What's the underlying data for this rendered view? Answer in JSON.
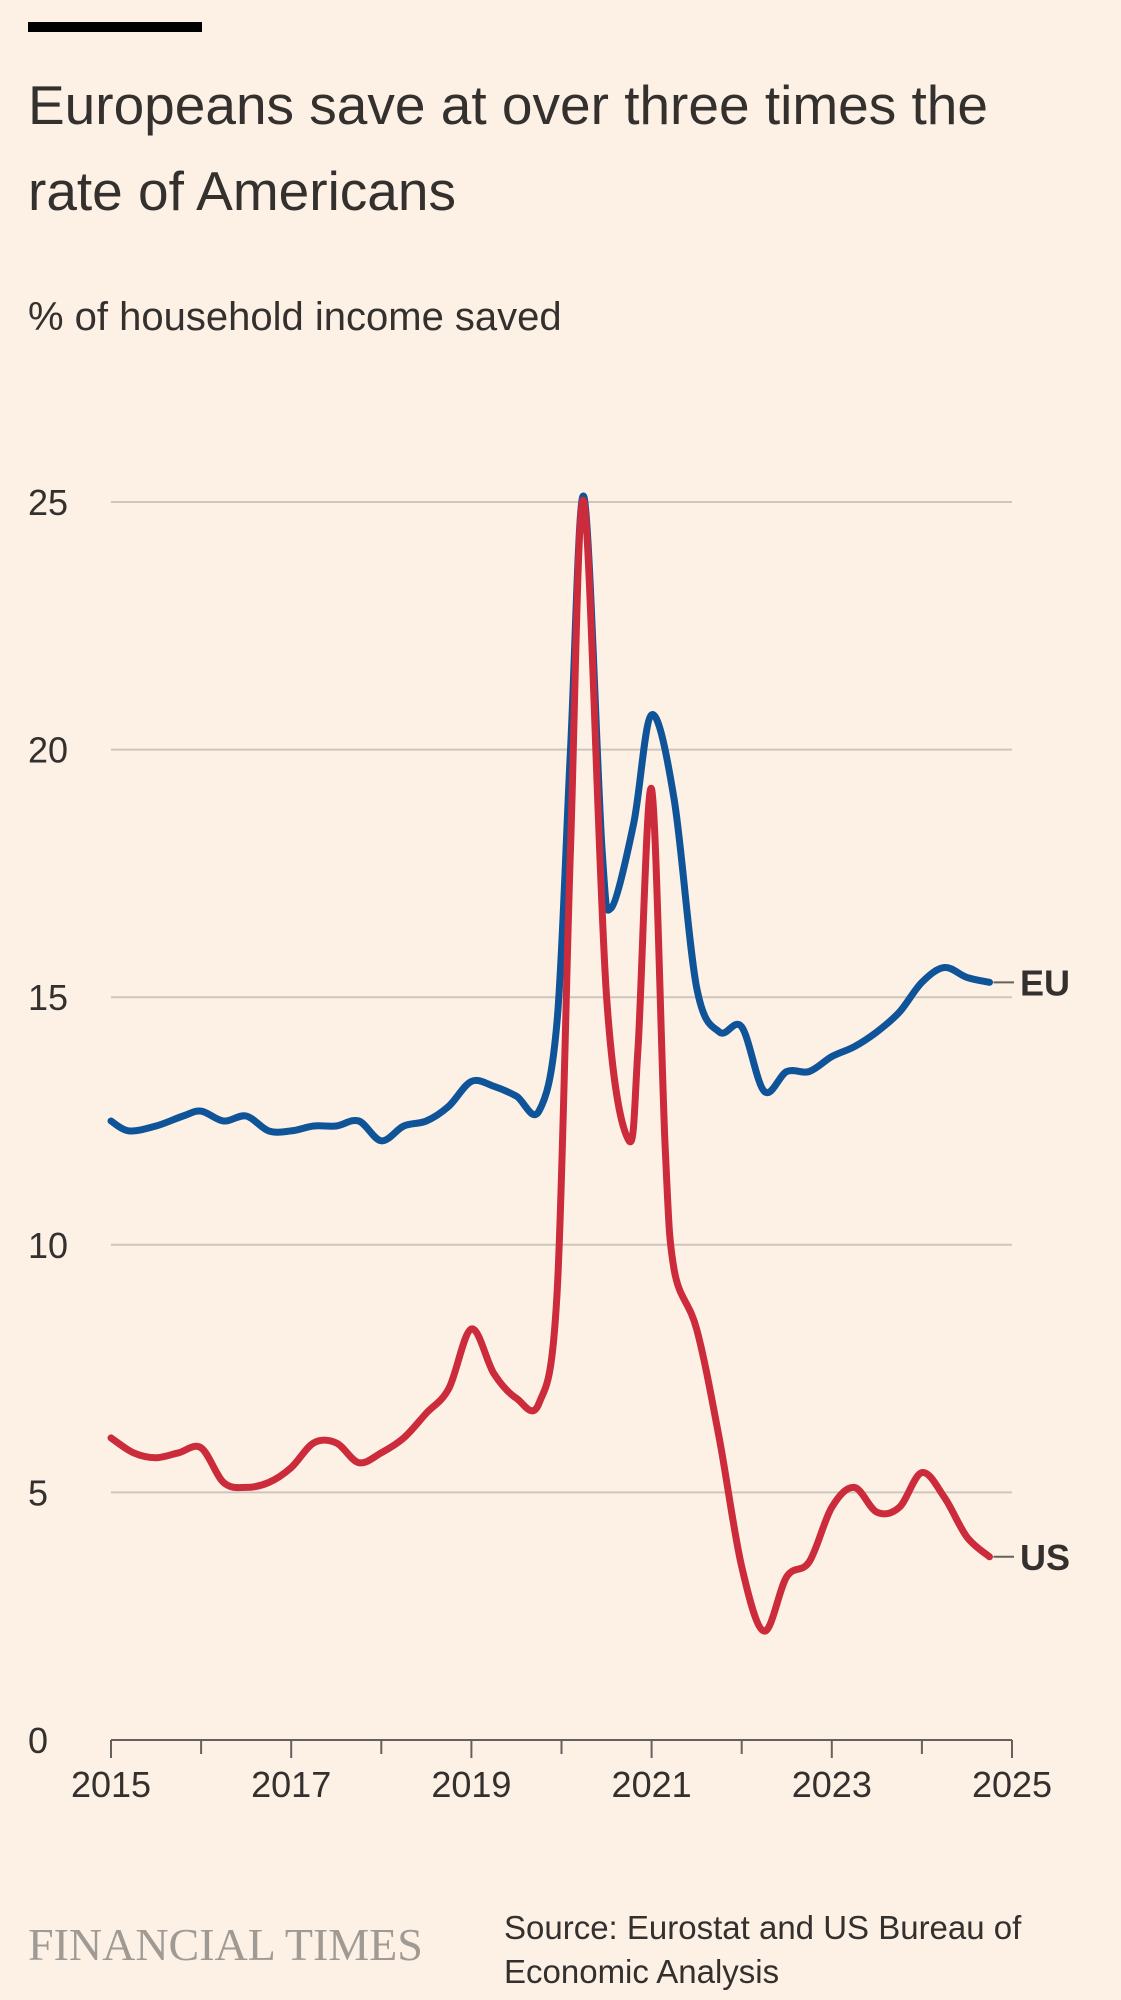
{
  "title": "Europeans save at over three times the rate of Americans",
  "subtitle": "% of household income saved",
  "footer": {
    "logo": "FINANCIAL TIMES",
    "source": "Source: Eurostat and US Bureau of Economic Analysis"
  },
  "colors": {
    "background": "#FDF1E6",
    "eu": "#0F5499",
    "us": "#CC2B3B",
    "grid": "#CEC6BE",
    "axis": "#66605C",
    "text": "#33302E",
    "logo": "#A09A95"
  },
  "chart_data": {
    "type": "line",
    "title": "Europeans save at over three times the rate of Americans",
    "subtitle": "% of household income saved",
    "xlabel": "",
    "ylabel": "% of household income saved",
    "xlim": [
      2015,
      2025
    ],
    "ylim": [
      0,
      25
    ],
    "x_ticks": [
      2015,
      2017,
      2019,
      2021,
      2023,
      2025
    ],
    "x_minor_ticks": [
      2016,
      2018,
      2020,
      2022,
      2024
    ],
    "y_ticks": [
      0,
      5,
      10,
      15,
      20,
      25
    ],
    "grid": true,
    "legend": "inline labels at right end of lines",
    "series": [
      {
        "name": "EU",
        "color": "#0F5499",
        "x": [
          2015.0,
          2015.2,
          2015.5,
          2015.8,
          2016.0,
          2016.25,
          2016.5,
          2016.75,
          2017.0,
          2017.25,
          2017.5,
          2017.75,
          2018.0,
          2018.25,
          2018.5,
          2018.75,
          2019.0,
          2019.25,
          2019.5,
          2019.75,
          2019.95,
          2020.1,
          2020.25,
          2020.45,
          2020.55,
          2020.8,
          2021.0,
          2021.25,
          2021.5,
          2021.75,
          2022.0,
          2022.25,
          2022.5,
          2022.75,
          2023.0,
          2023.25,
          2023.5,
          2023.75,
          2024.0,
          2024.25,
          2024.5,
          2024.75
        ],
        "values": [
          12.5,
          12.3,
          12.4,
          12.6,
          12.7,
          12.5,
          12.6,
          12.3,
          12.3,
          12.4,
          12.4,
          12.5,
          12.1,
          12.4,
          12.5,
          12.8,
          13.3,
          13.2,
          13.0,
          12.7,
          14.5,
          20.0,
          25.1,
          18.0,
          16.8,
          18.5,
          20.7,
          19.0,
          15.2,
          14.3,
          14.4,
          13.1,
          13.5,
          13.5,
          13.8,
          14.0,
          14.3,
          14.7,
          15.3,
          15.6,
          15.4,
          15.3
        ]
      },
      {
        "name": "US",
        "color": "#CC2B3B",
        "x": [
          2015.0,
          2015.25,
          2015.5,
          2015.75,
          2016.0,
          2016.25,
          2016.5,
          2016.75,
          2017.0,
          2017.25,
          2017.5,
          2017.75,
          2018.0,
          2018.25,
          2018.5,
          2018.75,
          2019.0,
          2019.25,
          2019.5,
          2019.75,
          2019.95,
          2020.1,
          2020.25,
          2020.5,
          2020.75,
          2020.85,
          2021.0,
          2021.15,
          2021.25,
          2021.5,
          2021.75,
          2022.0,
          2022.25,
          2022.5,
          2022.75,
          2023.0,
          2023.25,
          2023.5,
          2023.75,
          2024.0,
          2024.25,
          2024.5,
          2024.75
        ],
        "values": [
          6.1,
          5.8,
          5.7,
          5.8,
          5.9,
          5.2,
          5.1,
          5.2,
          5.5,
          6.0,
          6.0,
          5.6,
          5.8,
          6.1,
          6.6,
          7.1,
          8.3,
          7.4,
          6.9,
          6.8,
          9.0,
          18.0,
          25.0,
          15.0,
          12.1,
          14.0,
          19.2,
          12.0,
          9.5,
          8.3,
          6.1,
          3.5,
          2.2,
          3.3,
          3.6,
          4.7,
          5.1,
          4.6,
          4.7,
          5.4,
          4.9,
          4.1,
          3.7
        ]
      }
    ]
  }
}
